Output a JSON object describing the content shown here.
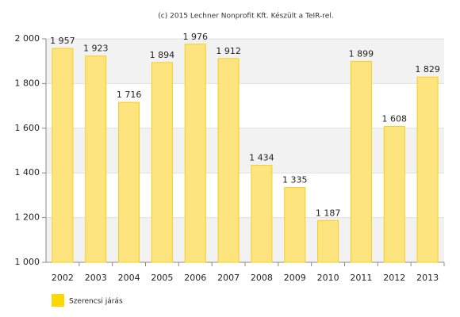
{
  "chart_data": {
    "type": "bar",
    "title": "(c) 2015 Lechner Nonprofit Kft. Készült a TeIR-rel.",
    "categories": [
      "2002",
      "2003",
      "2004",
      "2005",
      "2006",
      "2007",
      "2008",
      "2009",
      "2010",
      "2011",
      "2012",
      "2013"
    ],
    "series": [
      {
        "name": "Szerencsi járás",
        "color": "#fde47f",
        "values": [
          1957,
          1923,
          1716,
          1894,
          1976,
          1912,
          1434,
          1335,
          1187,
          1899,
          1608,
          1829
        ],
        "value_labels": [
          "1 957",
          "1 923",
          "1 716",
          "1 894",
          "1 976",
          "1 912",
          "1 434",
          "1 335",
          "1 187",
          "1 899",
          "1 608",
          "1 829"
        ]
      }
    ],
    "ylim": [
      1000,
      2000
    ],
    "yticks": [
      {
        "value": 1000,
        "label": "1 000"
      },
      {
        "value": 1200,
        "label": "1 200"
      },
      {
        "value": 1400,
        "label": "1 400"
      },
      {
        "value": 1600,
        "label": "1 600"
      },
      {
        "value": 1800,
        "label": "1 800"
      },
      {
        "value": 2000,
        "label": "2 000"
      }
    ],
    "grid": true,
    "legend": "bottom-left"
  }
}
